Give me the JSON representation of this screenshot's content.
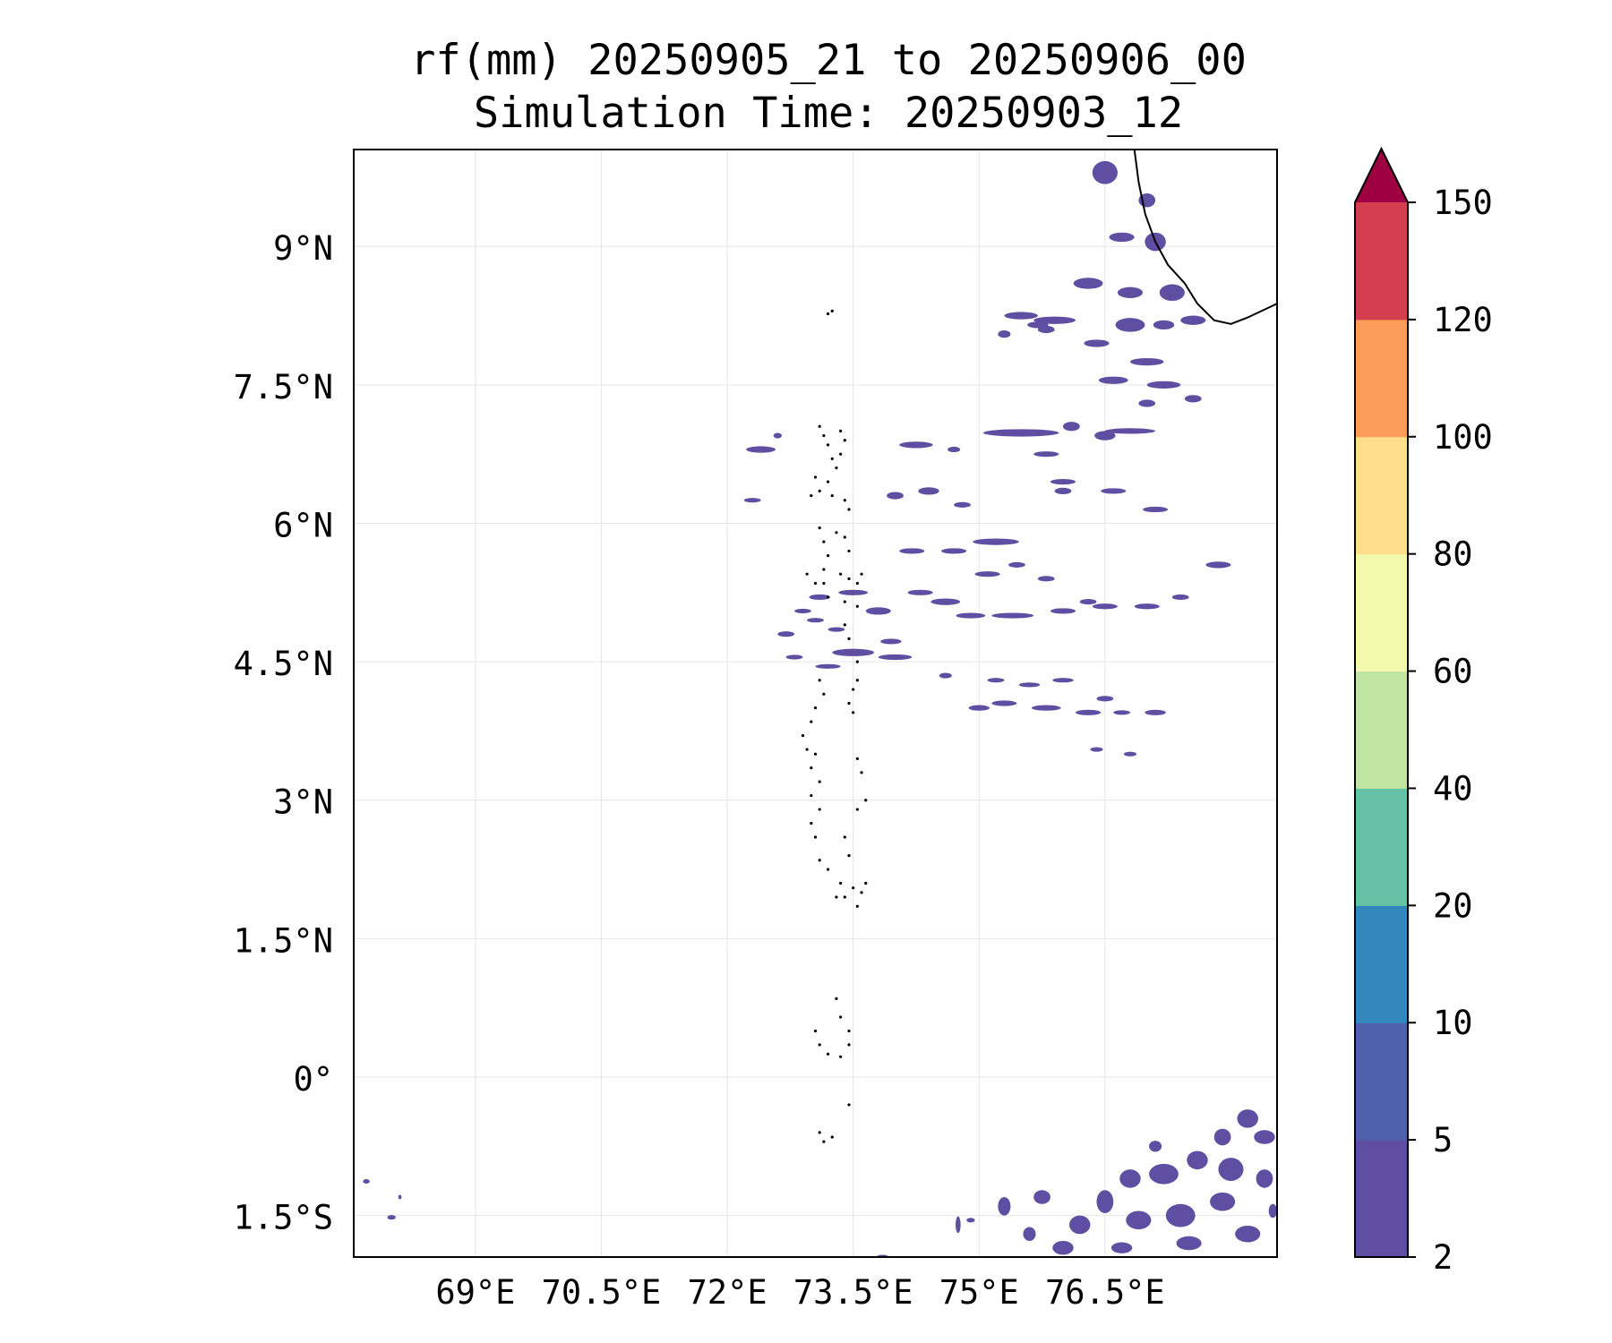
{
  "title": {
    "line1": "rf(mm) 20250905_21 to 20250906_00",
    "line2": "Simulation Time: 20250903_12"
  },
  "map": {
    "lon_range": [
      67.55,
      78.55
    ],
    "lat_range": [
      -1.95,
      10.05
    ],
    "lat_ticks": [
      {
        "value": 9,
        "label": "9°N"
      },
      {
        "value": 7.5,
        "label": "7.5°N"
      },
      {
        "value": 6,
        "label": "6°N"
      },
      {
        "value": 4.5,
        "label": "4.5°N"
      },
      {
        "value": 3,
        "label": "3°N"
      },
      {
        "value": 1.5,
        "label": "1.5°N"
      },
      {
        "value": 0,
        "label": "0°"
      },
      {
        "value": -1.5,
        "label": "1.5°S"
      }
    ],
    "lon_ticks": [
      {
        "value": 69,
        "label": "69°E"
      },
      {
        "value": 70.5,
        "label": "70.5°E"
      },
      {
        "value": 72,
        "label": "72°E"
      },
      {
        "value": 73.5,
        "label": "73.5°E"
      },
      {
        "value": 75,
        "label": "75°E"
      },
      {
        "value": 76.5,
        "label": "76.5°E"
      }
    ],
    "gridlines": true,
    "rain_color": "#5e4fa2",
    "coast_color": "#000000",
    "coastline": [
      [
        76.85,
        10.05
      ],
      [
        76.9,
        9.7
      ],
      [
        76.98,
        9.35
      ],
      [
        77.1,
        9.05
      ],
      [
        77.25,
        8.8
      ],
      [
        77.45,
        8.6
      ],
      [
        77.6,
        8.38
      ],
      [
        77.8,
        8.2
      ],
      [
        78.0,
        8.16
      ],
      [
        78.2,
        8.23
      ],
      [
        78.55,
        8.38
      ]
    ],
    "rain_cells": [
      [
        76.5,
        9.8,
        0.3,
        0.25
      ],
      [
        77.0,
        9.5,
        0.2,
        0.15
      ],
      [
        77.1,
        9.05,
        0.25,
        0.2
      ],
      [
        76.7,
        9.1,
        0.3,
        0.1
      ],
      [
        76.3,
        8.6,
        0.35,
        0.12
      ],
      [
        76.8,
        8.5,
        0.3,
        0.12
      ],
      [
        77.3,
        8.5,
        0.3,
        0.18
      ],
      [
        77.55,
        8.2,
        0.3,
        0.1
      ],
      [
        75.5,
        8.25,
        0.4,
        0.08
      ],
      [
        75.9,
        8.2,
        0.5,
        0.08
      ],
      [
        75.8,
        8.1,
        0.2,
        0.08
      ],
      [
        75.3,
        8.05,
        0.15,
        0.08
      ],
      [
        76.8,
        8.15,
        0.35,
        0.15
      ],
      [
        77.2,
        8.15,
        0.25,
        0.1
      ],
      [
        76.4,
        7.95,
        0.3,
        0.08
      ],
      [
        77.0,
        7.75,
        0.4,
        0.08
      ],
      [
        76.6,
        7.55,
        0.35,
        0.08
      ],
      [
        77.2,
        7.5,
        0.4,
        0.08
      ],
      [
        77.55,
        7.35,
        0.2,
        0.08
      ],
      [
        77.0,
        7.3,
        0.2,
        0.08
      ],
      [
        76.8,
        7.0,
        0.6,
        0.06
      ],
      [
        75.5,
        6.98,
        0.9,
        0.08
      ],
      [
        76.1,
        7.05,
        0.2,
        0.1
      ],
      [
        76.5,
        6.95,
        0.25,
        0.1
      ],
      [
        74.25,
        6.85,
        0.4,
        0.07
      ],
      [
        72.4,
        6.8,
        0.35,
        0.07
      ],
      [
        72.6,
        6.95,
        0.1,
        0.06
      ],
      [
        75.8,
        6.75,
        0.3,
        0.06
      ],
      [
        74.7,
        6.8,
        0.15,
        0.06
      ],
      [
        76.0,
        6.45,
        0.3,
        0.06
      ],
      [
        76.6,
        6.35,
        0.3,
        0.06
      ],
      [
        77.1,
        6.15,
        0.3,
        0.06
      ],
      [
        74.4,
        6.35,
        0.25,
        0.08
      ],
      [
        74.0,
        6.3,
        0.2,
        0.08
      ],
      [
        74.8,
        6.2,
        0.2,
        0.06
      ],
      [
        72.3,
        6.25,
        0.2,
        0.05
      ],
      [
        76.0,
        6.35,
        0.2,
        0.07
      ],
      [
        74.2,
        5.7,
        0.3,
        0.06
      ],
      [
        74.7,
        5.7,
        0.3,
        0.06
      ],
      [
        75.2,
        5.8,
        0.55,
        0.07
      ],
      [
        75.1,
        5.45,
        0.3,
        0.06
      ],
      [
        75.45,
        5.55,
        0.2,
        0.06
      ],
      [
        75.8,
        5.4,
        0.2,
        0.06
      ],
      [
        74.3,
        5.25,
        0.3,
        0.06
      ],
      [
        74.6,
        5.15,
        0.35,
        0.07
      ],
      [
        74.9,
        5.0,
        0.35,
        0.06
      ],
      [
        75.4,
        5.0,
        0.5,
        0.06
      ],
      [
        76.0,
        5.05,
        0.3,
        0.06
      ],
      [
        76.3,
        5.15,
        0.2,
        0.06
      ],
      [
        76.5,
        5.1,
        0.3,
        0.06
      ],
      [
        77.0,
        5.1,
        0.3,
        0.06
      ],
      [
        77.4,
        5.2,
        0.2,
        0.06
      ],
      [
        77.85,
        5.55,
        0.3,
        0.07
      ],
      [
        73.1,
        5.2,
        0.25,
        0.06
      ],
      [
        73.5,
        5.25,
        0.35,
        0.06
      ],
      [
        73.8,
        5.05,
        0.3,
        0.08
      ],
      [
        72.9,
        5.05,
        0.2,
        0.05
      ],
      [
        73.05,
        4.95,
        0.2,
        0.05
      ],
      [
        72.7,
        4.8,
        0.2,
        0.06
      ],
      [
        73.3,
        4.85,
        0.2,
        0.05
      ],
      [
        73.5,
        4.6,
        0.5,
        0.08
      ],
      [
        74.0,
        4.55,
        0.4,
        0.06
      ],
      [
        73.95,
        4.72,
        0.25,
        0.06
      ],
      [
        72.8,
        4.55,
        0.2,
        0.05
      ],
      [
        73.2,
        4.45,
        0.3,
        0.05
      ],
      [
        74.6,
        4.35,
        0.15,
        0.06
      ],
      [
        75.2,
        4.3,
        0.2,
        0.05
      ],
      [
        75.6,
        4.25,
        0.25,
        0.05
      ],
      [
        76.0,
        4.3,
        0.25,
        0.05
      ],
      [
        76.5,
        4.1,
        0.2,
        0.06
      ],
      [
        75.3,
        4.05,
        0.3,
        0.06
      ],
      [
        75.8,
        4.0,
        0.35,
        0.06
      ],
      [
        76.3,
        3.95,
        0.3,
        0.06
      ],
      [
        75.0,
        4.0,
        0.25,
        0.06
      ],
      [
        77.1,
        3.95,
        0.25,
        0.06
      ],
      [
        76.7,
        3.95,
        0.2,
        0.05
      ],
      [
        76.8,
        3.5,
        0.15,
        0.05
      ],
      [
        76.4,
        3.55,
        0.15,
        0.05
      ],
      [
        75.7,
        8.15,
        0.25,
        0.07
      ],
      [
        78.2,
        -0.45,
        0.25,
        0.2
      ],
      [
        77.9,
        -0.65,
        0.2,
        0.18
      ],
      [
        78.4,
        -0.65,
        0.25,
        0.15
      ],
      [
        77.6,
        -0.9,
        0.25,
        0.2
      ],
      [
        78.0,
        -1.0,
        0.3,
        0.25
      ],
      [
        77.2,
        -1.05,
        0.35,
        0.22
      ],
      [
        76.8,
        -1.1,
        0.25,
        0.2
      ],
      [
        78.4,
        -1.1,
        0.2,
        0.2
      ],
      [
        77.9,
        -1.35,
        0.3,
        0.2
      ],
      [
        77.4,
        -1.5,
        0.35,
        0.25
      ],
      [
        76.9,
        -1.55,
        0.3,
        0.2
      ],
      [
        76.5,
        -1.35,
        0.2,
        0.25
      ],
      [
        76.2,
        -1.6,
        0.25,
        0.2
      ],
      [
        75.75,
        -1.3,
        0.2,
        0.15
      ],
      [
        75.3,
        -1.4,
        0.15,
        0.2
      ],
      [
        76.0,
        -1.85,
        0.25,
        0.15
      ],
      [
        76.7,
        -1.85,
        0.25,
        0.12
      ],
      [
        77.5,
        -1.8,
        0.3,
        0.15
      ],
      [
        78.2,
        -1.7,
        0.3,
        0.18
      ],
      [
        78.5,
        -1.45,
        0.1,
        0.15
      ],
      [
        75.6,
        -1.7,
        0.15,
        0.15
      ],
      [
        77.1,
        -0.75,
        0.15,
        0.12
      ],
      [
        74.75,
        -1.6,
        0.06,
        0.18
      ],
      [
        74.9,
        -1.55,
        0.1,
        0.05
      ],
      [
        67.7,
        -1.13,
        0.08,
        0.03
      ],
      [
        68.0,
        -1.52,
        0.1,
        0.03
      ],
      [
        68.1,
        -1.3,
        0.04,
        0.04
      ],
      [
        73.85,
        -1.95,
        0.15,
        0.04
      ]
    ],
    "island_dots": [
      [
        73.1,
        7.05
      ],
      [
        73.15,
        6.95
      ],
      [
        73.2,
        6.85
      ],
      [
        73.25,
        6.7
      ],
      [
        73.3,
        6.6
      ],
      [
        73.35,
        6.75
      ],
      [
        73.4,
        6.9
      ],
      [
        73.35,
        7.0
      ],
      [
        73.2,
        6.45
      ],
      [
        73.1,
        6.35
      ],
      [
        73.25,
        6.3
      ],
      [
        73.4,
        6.25
      ],
      [
        73.45,
        6.15
      ],
      [
        73.05,
        6.5
      ],
      [
        73.0,
        6.3
      ],
      [
        73.1,
        5.95
      ],
      [
        73.15,
        5.8
      ],
      [
        73.2,
        5.65
      ],
      [
        73.15,
        5.5
      ],
      [
        73.3,
        5.9
      ],
      [
        73.4,
        5.85
      ],
      [
        73.45,
        5.7
      ],
      [
        72.95,
        5.45
      ],
      [
        73.05,
        5.35
      ],
      [
        73.15,
        5.35
      ],
      [
        73.35,
        5.45
      ],
      [
        73.45,
        5.4
      ],
      [
        73.55,
        5.35
      ],
      [
        73.6,
        5.45
      ],
      [
        73.2,
        5.2
      ],
      [
        73.4,
        5.15
      ],
      [
        73.55,
        5.1
      ],
      [
        73.4,
        4.9
      ],
      [
        73.45,
        4.75
      ],
      [
        73.55,
        4.5
      ],
      [
        73.55,
        4.3
      ],
      [
        73.5,
        4.2
      ],
      [
        73.45,
        4.05
      ],
      [
        73.5,
        3.95
      ],
      [
        73.1,
        4.3
      ],
      [
        73.15,
        4.15
      ],
      [
        73.05,
        4.0
      ],
      [
        73.0,
        3.85
      ],
      [
        72.9,
        3.7
      ],
      [
        72.95,
        3.55
      ],
      [
        73.05,
        3.5
      ],
      [
        73.0,
        3.35
      ],
      [
        73.1,
        3.2
      ],
      [
        73.0,
        3.05
      ],
      [
        73.1,
        2.9
      ],
      [
        73.0,
        2.75
      ],
      [
        73.05,
        2.6
      ],
      [
        73.55,
        3.45
      ],
      [
        73.6,
        3.3
      ],
      [
        73.65,
        3.0
      ],
      [
        73.55,
        2.9
      ],
      [
        73.4,
        2.6
      ],
      [
        73.45,
        2.4
      ],
      [
        73.1,
        2.35
      ],
      [
        73.2,
        2.25
      ],
      [
        73.35,
        2.1
      ],
      [
        73.4,
        1.95
      ],
      [
        73.55,
        1.85
      ],
      [
        73.6,
        2.0
      ],
      [
        73.65,
        2.1
      ],
      [
        73.5,
        2.05
      ],
      [
        73.3,
        1.95
      ],
      [
        73.3,
        0.85
      ],
      [
        73.35,
        0.65
      ],
      [
        73.45,
        0.5
      ],
      [
        73.05,
        0.5
      ],
      [
        73.1,
        0.35
      ],
      [
        73.2,
        0.25
      ],
      [
        73.35,
        0.22
      ],
      [
        73.45,
        0.35
      ],
      [
        73.45,
        -0.3
      ],
      [
        73.1,
        -0.6
      ],
      [
        73.15,
        -0.7
      ],
      [
        73.25,
        -0.65
      ],
      [
        73.25,
        8.3
      ],
      [
        73.2,
        8.27
      ]
    ]
  },
  "colorbar": {
    "levels": [
      "2",
      "5",
      "10",
      "20",
      "40",
      "60",
      "80",
      "100",
      "120",
      "150"
    ],
    "colors": [
      "#5e4fa2",
      "#4f61aa",
      "#3288bd",
      "#66c2a5",
      "#bfe5a0",
      "#f4faad",
      "#fddf8b",
      "#f99d59",
      "#d53e4f"
    ],
    "extend_color": "#9e0142"
  }
}
